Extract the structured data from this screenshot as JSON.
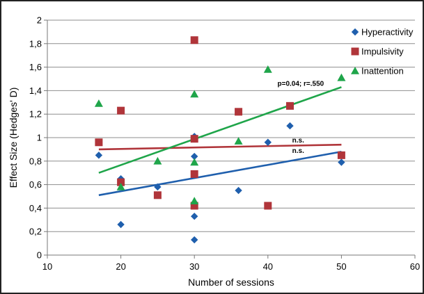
{
  "chart_data": {
    "type": "scatter",
    "xlabel": "Number of sessions",
    "ylabel": "Effect Size (Hedges' D)",
    "xlim": [
      10,
      60
    ],
    "ylim": [
      0,
      2
    ],
    "x_ticks": [
      "10",
      "20",
      "30",
      "40",
      "50",
      "60"
    ],
    "y_ticks": [
      "0",
      "0,2",
      "0,4",
      "0,6",
      "0,8",
      "1",
      "1,2",
      "1,4",
      "1,6",
      "1,8",
      "2"
    ],
    "grid": "horizontal",
    "legend_position": "top-right",
    "series": [
      {
        "name": "Hyperactivity",
        "color": "#1f5fad",
        "marker": "diamond",
        "points": [
          [
            17,
            0.85
          ],
          [
            20,
            0.26
          ],
          [
            20,
            0.65
          ],
          [
            20,
            0.62
          ],
          [
            25,
            0.58
          ],
          [
            30,
            1.01
          ],
          [
            30,
            0.84
          ],
          [
            30,
            0.33
          ],
          [
            30,
            0.13
          ],
          [
            36,
            0.55
          ],
          [
            40,
            0.96
          ],
          [
            43,
            1.1
          ],
          [
            50,
            0.79
          ]
        ],
        "trend": {
          "from": [
            17,
            0.51
          ],
          "to": [
            50,
            0.88
          ]
        }
      },
      {
        "name": "Impulsivity",
        "color": "#b0353a",
        "marker": "square",
        "points": [
          [
            17,
            0.96
          ],
          [
            20,
            1.23
          ],
          [
            20,
            0.62
          ],
          [
            25,
            0.51
          ],
          [
            30,
            1.83
          ],
          [
            30,
            0.99
          ],
          [
            30,
            0.69
          ],
          [
            30,
            0.42
          ],
          [
            36,
            1.22
          ],
          [
            40,
            0.42
          ],
          [
            43,
            1.27
          ],
          [
            50,
            0.85
          ]
        ],
        "trend": {
          "from": [
            17,
            0.9
          ],
          "to": [
            50,
            0.94
          ]
        }
      },
      {
        "name": "Inattention",
        "color": "#1fa54a",
        "marker": "triangle",
        "points": [
          [
            17,
            1.29
          ],
          [
            20,
            0.58
          ],
          [
            25,
            0.8
          ],
          [
            30,
            1.37
          ],
          [
            30,
            0.79
          ],
          [
            30,
            0.46
          ],
          [
            36,
            0.97
          ],
          [
            40,
            1.58
          ],
          [
            50,
            1.51
          ]
        ],
        "trend": {
          "from": [
            17,
            0.7
          ],
          "to": [
            50,
            1.43
          ]
        }
      }
    ],
    "annotations": [
      {
        "text": "p=0.04; r=.550",
        "x": 41.3,
        "y": 1.44
      },
      {
        "text": "n.s.",
        "x": 43.3,
        "y": 0.96
      },
      {
        "text": "n.s.",
        "x": 43.3,
        "y": 0.87
      }
    ]
  }
}
